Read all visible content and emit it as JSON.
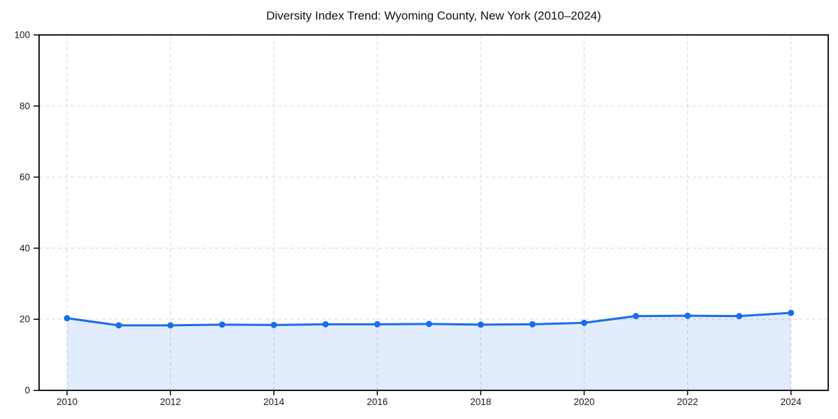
{
  "figure": {
    "background": "#ffffff"
  },
  "chart_data": {
    "type": "area",
    "title": "Diversity Index Trend: Wyoming County, New York (2010–2024)",
    "x": [
      2010,
      2011,
      2012,
      2013,
      2014,
      2015,
      2016,
      2017,
      2018,
      2019,
      2020,
      2021,
      2022,
      2023,
      2024
    ],
    "series": [
      {
        "name": "Diversity Index",
        "values": [
          20.3,
          18.3,
          18.3,
          18.5,
          18.4,
          18.6,
          18.6,
          18.7,
          18.5,
          18.6,
          19.0,
          20.9,
          21.0,
          20.9,
          21.8
        ]
      }
    ],
    "xlabel": "",
    "ylabel": "",
    "xlim": [
      2009.46,
      2024.72
    ],
    "ylim": [
      0,
      100
    ],
    "xticks": [
      2010,
      2012,
      2014,
      2016,
      2018,
      2020,
      2022,
      2024
    ],
    "yticks": [
      0,
      20,
      40,
      60,
      80,
      100
    ],
    "grid": "dashed-both-axes",
    "legend_position": "none",
    "marker": "circle",
    "style": {
      "line_color": "#1b6ce8",
      "fill_color": "rgba(27,108,232,0.13)",
      "grid_color": "#dcdcdc",
      "axis_color": "#000000",
      "tick_label_color": "#1a1a1a",
      "title_color": "#111111",
      "line_width": 3,
      "marker_radius": 4.5,
      "tick_font_size": 13.5
    }
  }
}
